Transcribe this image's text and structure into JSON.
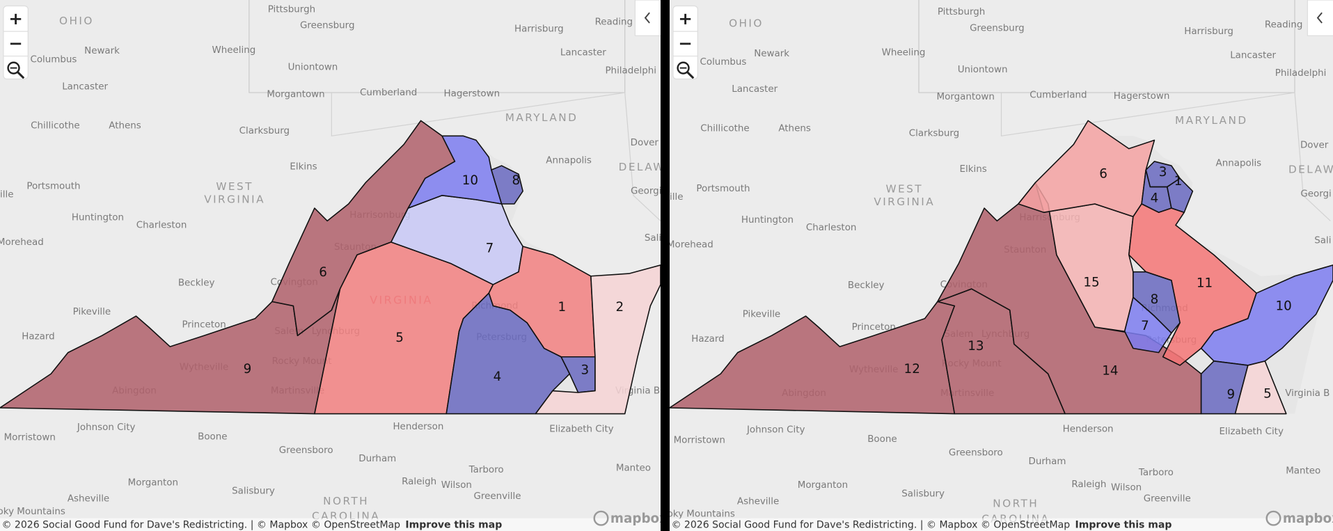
{
  "places": [
    "OHIO",
    "Pittsburgh",
    "Greensburg",
    "Reading",
    "Harrisburg",
    "Newark",
    "Wheeling",
    "Columbus",
    "Lancaster",
    "Uniontown",
    "Philadelphi",
    "Lancaster",
    "Morgantown",
    "Cumberland",
    "Hagerstown",
    "MARYLAND",
    "Chillicothe",
    "Athens",
    "Clarksburg",
    "Dover",
    "Annapolis",
    "Elkins",
    "DELAWA",
    "Portsmouth",
    "WEST",
    "VIRGINIA",
    "Georgi",
    "ille",
    "Huntington",
    "Charleston",
    "Harrisonburg",
    "Staunton",
    "Morehead",
    "Beckley",
    "Covington",
    "Richmond",
    "Pikeville",
    "Princeton",
    "Hazard",
    "Salem",
    "Lynchburg",
    "Wytheville",
    "Rocky Mount",
    "Petersburg",
    "Abingdon",
    "Martinsville",
    "Virginia B",
    "Johnson City",
    "Henderson",
    "Elizabeth City",
    "Morristown",
    "Boone",
    "Greensboro",
    "Durham",
    "Raleigh",
    "Wilson",
    "Tarboro",
    "Manteo",
    "Asheville",
    "Morganton",
    "Salisbury",
    "Greenville",
    "NORTH",
    "CAROLINA",
    "oky Mountains",
    "Sali"
  ],
  "state_label": "VIRGINIA",
  "controls": {
    "zoom_in": "+",
    "zoom_out": "−"
  },
  "attribution": {
    "text": "© 2026 Social Good Fund for Dave's Redistricting. | © Mapbox © OpenStreetMap",
    "link": "Improve this map"
  },
  "logo": "mapbox",
  "panels": [
    {
      "districts": [
        {
          "label": "9",
          "color": "#b0606b"
        },
        {
          "label": "6",
          "color": "#b0606b"
        },
        {
          "label": "5",
          "color": "#f28080"
        },
        {
          "label": "7",
          "color": "#c8c8f6"
        },
        {
          "label": "10",
          "color": "#7c7cf0"
        },
        {
          "label": "8",
          "color": "#6868c0"
        },
        {
          "label": "1",
          "color": "#f28080"
        },
        {
          "label": "4",
          "color": "#6868c0"
        },
        {
          "label": "3",
          "color": "#6868c0"
        },
        {
          "label": "2",
          "color": "#f6d3d5"
        }
      ]
    },
    {
      "districts": [
        {
          "label": "12",
          "color": "#b0606b"
        },
        {
          "label": "13",
          "color": "#b0606b"
        },
        {
          "label": "14",
          "color": "#b0606b"
        },
        {
          "label": "15",
          "color": "#f5b3b3"
        },
        {
          "label": "6",
          "color": "#f5a2a2"
        },
        {
          "label": "3",
          "color": "#6868c0"
        },
        {
          "label": "4",
          "color": "#6868c0"
        },
        {
          "label": "1",
          "color": "#6868c0"
        },
        {
          "label": "11",
          "color": "#f47676"
        },
        {
          "label": "8",
          "color": "#6868c0"
        },
        {
          "label": "7",
          "color": "#7c7cf0"
        },
        {
          "label": "10",
          "color": "#7c7cf0"
        },
        {
          "label": "9",
          "color": "#6868c0"
        },
        {
          "label": "5",
          "color": "#f6d3d5"
        }
      ]
    }
  ]
}
